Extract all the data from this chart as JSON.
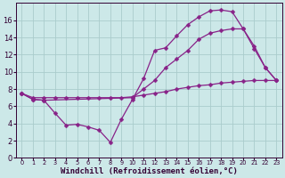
{
  "background_color": "#cce8e8",
  "grid_color": "#aacccc",
  "line_color": "#882288",
  "xlabel": "Windchill (Refroidissement éolien,°C)",
  "xlabel_fontsize": 6.5,
  "ylabel_ticks": [
    0,
    2,
    4,
    6,
    8,
    10,
    12,
    14,
    16
  ],
  "xlim": [
    -0.5,
    23.5
  ],
  "ylim": [
    0,
    18
  ],
  "line1_x": [
    0,
    1,
    2,
    3,
    4,
    5,
    6,
    7,
    8,
    9,
    10,
    11,
    12,
    13,
    14,
    15,
    16,
    17,
    18,
    19,
    20,
    21,
    22,
    23
  ],
  "line1_y": [
    7.5,
    6.8,
    6.7,
    5.2,
    3.8,
    3.9,
    3.6,
    3.2,
    1.8,
    4.5,
    6.8,
    9.2,
    12.5,
    12.8,
    14.2,
    15.5,
    16.4,
    17.1,
    17.2,
    17.0,
    15.0,
    12.7,
    10.5,
    9.0
  ],
  "line2_x": [
    0,
    1,
    2,
    3,
    4,
    5,
    6,
    7,
    8,
    9,
    10,
    11,
    12,
    13,
    14,
    15,
    16,
    17,
    18,
    19,
    20,
    21,
    22,
    23
  ],
  "line2_y": [
    7.5,
    7.0,
    7.0,
    7.0,
    7.0,
    7.0,
    7.0,
    7.0,
    7.0,
    7.0,
    7.1,
    7.3,
    7.5,
    7.7,
    8.0,
    8.2,
    8.4,
    8.5,
    8.7,
    8.8,
    8.9,
    9.0,
    9.0,
    9.0
  ],
  "line3_x": [
    0,
    1,
    2,
    10,
    11,
    12,
    13,
    14,
    15,
    16,
    17,
    18,
    19,
    20,
    21,
    22,
    23
  ],
  "line3_y": [
    7.5,
    6.8,
    6.7,
    7.0,
    8.0,
    9.0,
    10.5,
    11.5,
    12.5,
    13.8,
    14.5,
    14.8,
    15.0,
    15.0,
    13.0,
    10.5,
    9.0
  ],
  "xtick_labels": [
    "0",
    "1",
    "2",
    "3",
    "4",
    "5",
    "6",
    "7",
    "8",
    "9",
    "10",
    "11",
    "12",
    "13",
    "14",
    "15",
    "16",
    "17",
    "18",
    "19",
    "20",
    "21",
    "22",
    "23"
  ],
  "marker": "D",
  "markersize": 2.5
}
